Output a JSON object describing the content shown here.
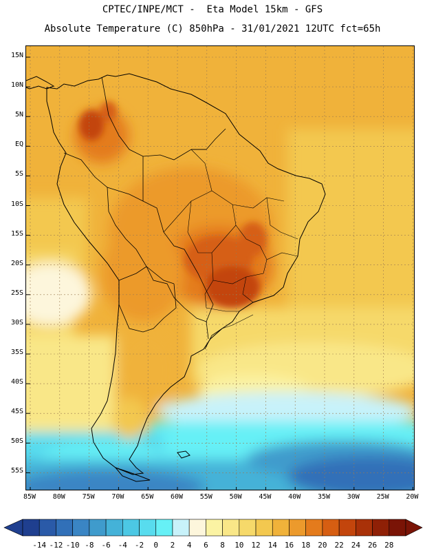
{
  "header": {
    "line1": "CPTEC/INPE/MCT -  Eta Model 15km - GFS",
    "line2": "Absolute Temperature (C) 850hPa - 31/01/2021 12UTC fct=65h"
  },
  "lat_labels": [
    "15N",
    "10N",
    "5N",
    "EQ",
    "5S",
    "10S",
    "15S",
    "20S",
    "25S",
    "30S",
    "35S",
    "40S",
    "45S",
    "50S",
    "55S"
  ],
  "lon_labels": [
    "85W",
    "80W",
    "75W",
    "70W",
    "65W",
    "60W",
    "55W",
    "50W",
    "45W",
    "40W",
    "35W",
    "30W",
    "25W",
    "20W"
  ],
  "colorbar": {
    "labels": [
      "-14",
      "-12",
      "-10",
      "-8",
      "-6",
      "-4",
      "-2",
      "0",
      "2",
      "4",
      "6",
      "8",
      "10",
      "12",
      "14",
      "16",
      "18",
      "20",
      "22",
      "24",
      "26",
      "28"
    ],
    "colors": [
      "#1f3f8f",
      "#2a5aa8",
      "#3170b8",
      "#3a85c4",
      "#3f9bcc",
      "#44b2d8",
      "#4cc8e4",
      "#58dcee",
      "#66f0f6",
      "#c8f2fa",
      "#fdf6dc",
      "#fbf3a3",
      "#f9e788",
      "#f6d96a",
      "#f3c84f",
      "#f0b23a",
      "#ec9a2c",
      "#e47b1c",
      "#d65e12",
      "#c3450c",
      "#a93108",
      "#8f2006",
      "#7a1406"
    ]
  },
  "chart_data": {
    "type": "heatmap",
    "title": "CPTEC/INPE/MCT - Eta Model 15km - GFS",
    "subtitle": "Absolute Temperature (C) 850hPa - 31/01/2021 12UTC fct=65h",
    "variable": "Absolute Temperature (C) 850hPa",
    "lon_range": [
      -86,
      -20
    ],
    "lat_range": [
      -58,
      16
    ],
    "grid": true,
    "colorbar_range": [
      -14,
      28
    ],
    "colorbar_step": 2,
    "regions": [
      {
        "area": "central Brazil interior",
        "value": 24
      },
      {
        "area": "northern Colombia/Venezuela interior",
        "value": 22
      },
      {
        "area": "Amazon basin",
        "value": 18
      },
      {
        "area": "tropical Atlantic",
        "value": 16
      },
      {
        "area": "eastern Pacific off Chile",
        "value": 8
      },
      {
        "area": "Patagonia interior",
        "value": 12
      },
      {
        "area": "South Atlantic near 48S",
        "value": 2
      },
      {
        "area": "Southern Ocean south of 52S",
        "value": -4
      }
    ]
  }
}
